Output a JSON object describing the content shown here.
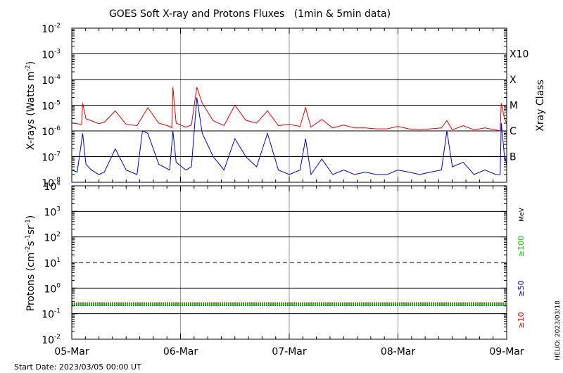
{
  "title": "GOES Soft X-ray and Protons Fluxes   (1min & 5min data)",
  "footer": {
    "start_date": "Start Date: 2023/03/05 00:00 UT",
    "credit": "HELIO: 2023/03/18"
  },
  "colors": {
    "red": "#dd0000",
    "blue": "#0000cc",
    "green": "#00cc00",
    "grid": "#9a9a9a"
  },
  "chart_data": [
    {
      "type": "line",
      "panel": "xray",
      "ylabel_base": "X-rays (Watts m",
      "ylabel_exp": "-2",
      "ylabel_end": ")",
      "yscale": "log",
      "ylim": [
        1e-08,
        0.01
      ],
      "ytick_exponents": [
        "-2",
        "-3",
        "-4",
        "-5",
        "-6",
        "-7",
        "-8"
      ],
      "xlim": [
        0,
        4
      ],
      "xtick_labels": [
        "05-Mar",
        "06-Mar",
        "07-Mar",
        "08-Mar",
        "09-Mar"
      ],
      "right_axis_title": "Xray Class",
      "class_labels": [
        {
          "label": "X10",
          "value": 0.001
        },
        {
          "label": "X",
          "value": 0.0001
        },
        {
          "label": "M",
          "value": 1e-05
        },
        {
          "label": "C",
          "value": 1e-06
        },
        {
          "label": "B",
          "value": 1e-07
        }
      ],
      "series": [
        {
          "color": "red",
          "x": [
            0,
            0.05,
            0.09,
            0.1,
            0.13,
            0.18,
            0.25,
            0.3,
            0.4,
            0.5,
            0.6,
            0.7,
            0.8,
            0.9,
            0.92,
            0.93,
            0.96,
            1.05,
            1.1,
            1.15,
            1.2,
            1.3,
            1.4,
            1.5,
            1.6,
            1.7,
            1.8,
            1.9,
            1.95,
            2.0,
            2.1,
            2.15,
            2.2,
            2.3,
            2.4,
            2.5,
            2.6,
            2.7,
            2.8,
            2.9,
            3.0,
            3.1,
            3.2,
            3.3,
            3.4,
            3.45,
            3.5,
            3.6,
            3.7,
            3.8,
            3.9,
            3.94,
            3.95,
            3.98,
            4.0
          ],
          "y": [
            2e-06,
            1.9e-06,
            1.8e-06,
            1.2e-05,
            3e-06,
            2.5e-06,
            1.9e-06,
            2.2e-06,
            6e-06,
            1.8e-06,
            1.6e-06,
            8e-06,
            2e-06,
            1.5e-06,
            1.3e-06,
            5e-05,
            2e-06,
            1.4e-06,
            1.7e-06,
            5e-05,
            1.2e-05,
            2.5e-06,
            1.6e-06,
            1e-05,
            2.6e-06,
            2e-06,
            6e-06,
            1.6e-06,
            1.7e-06,
            1.8e-06,
            1.5e-06,
            8e-06,
            1.4e-06,
            2.8e-06,
            1.3e-06,
            1.7e-06,
            1.3e-06,
            1.3e-06,
            1.2e-06,
            1.2e-06,
            1.5e-06,
            1.2e-06,
            1.1e-06,
            1.2e-06,
            1.3e-06,
            2.5e-06,
            1.1e-06,
            1.6e-06,
            1.1e-06,
            1.3e-06,
            1.1e-06,
            1e-06,
            1.2e-05,
            3e-06,
            2e-06
          ]
        },
        {
          "color": "blue",
          "x": [
            0,
            0.05,
            0.1,
            0.13,
            0.18,
            0.25,
            0.3,
            0.4,
            0.5,
            0.6,
            0.65,
            0.7,
            0.8,
            0.9,
            0.93,
            0.96,
            1.05,
            1.1,
            1.15,
            1.2,
            1.3,
            1.4,
            1.5,
            1.6,
            1.7,
            1.8,
            1.9,
            2.0,
            2.1,
            2.15,
            2.2,
            2.3,
            2.4,
            2.5,
            2.6,
            2.7,
            2.8,
            2.9,
            3.0,
            3.1,
            3.2,
            3.3,
            3.4,
            3.45,
            3.5,
            3.6,
            3.7,
            3.8,
            3.9,
            3.94,
            3.95,
            3.98,
            4.0
          ],
          "y": [
            3e-08,
            2.5e-08,
            8e-07,
            5e-08,
            3e-08,
            2e-08,
            2.5e-08,
            2e-07,
            3e-08,
            2e-08,
            1e-06,
            8e-07,
            5e-08,
            3e-08,
            1e-06,
            6e-08,
            3e-08,
            4e-08,
            2e-05,
            8e-07,
            1e-07,
            3e-08,
            5e-07,
            1e-07,
            4e-08,
            8e-07,
            3e-08,
            2e-08,
            3e-08,
            5e-07,
            2e-08,
            8e-08,
            2e-08,
            3e-08,
            2e-08,
            2.5e-08,
            2e-08,
            2e-08,
            3e-08,
            2.5e-08,
            2e-08,
            2.5e-08,
            3e-08,
            1e-06,
            4e-08,
            6e-08,
            2e-08,
            3e-08,
            2e-08,
            2e-08,
            2e-06,
            1e-07,
            5e-08
          ]
        }
      ]
    },
    {
      "type": "line",
      "panel": "protons",
      "ylabel_base": "Protons (cm",
      "ylabel_exp1": "-2",
      "ylabel_mid1": "s",
      "ylabel_exp2": "-1",
      "ylabel_mid2": "sr",
      "ylabel_exp3": "-1",
      "ylabel_end": ")",
      "yscale": "log",
      "ylim": [
        0.01,
        10000
      ],
      "ytick_exponents": [
        "4",
        "3",
        "2",
        "1",
        "0",
        "-1",
        "-2"
      ],
      "threshold": 10,
      "xlim": [
        0,
        4
      ],
      "xtick_labels": [
        "05-Mar",
        "06-Mar",
        "07-Mar",
        "08-Mar",
        "09-Mar"
      ],
      "energy_unit": "MeV",
      "series": [
        {
          "name": "≥10",
          "color": "red",
          "value": 0.25
        },
        {
          "name": "≥50",
          "color": "blue",
          "value": 0.22
        },
        {
          "name": "≥100",
          "color": "green",
          "value": 0.23
        }
      ]
    }
  ]
}
